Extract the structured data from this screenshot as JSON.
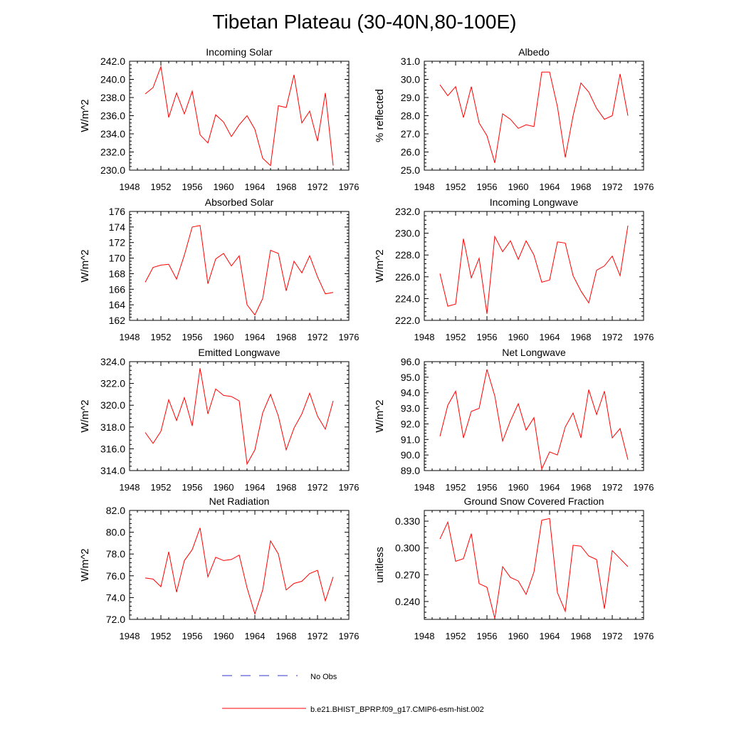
{
  "figure": {
    "title": "Tibetan Plateau (30-40N,80-100E)"
  },
  "legend": {
    "obs_label": "No Obs",
    "obs_color": "#3333cc",
    "model_label": "b.e21.BHIST_BPRP.f09_g17.CMIP6-esm-hist.002",
    "model_color": "#ff0000"
  },
  "chart_data": [
    {
      "type": "line",
      "title": "Incoming Solar",
      "ylabel": "W/m^2",
      "xlabel": "",
      "xlim": [
        1948,
        1976
      ],
      "xticks": [
        "1948",
        "1952",
        "1956",
        "1960",
        "1964",
        "1968",
        "1972",
        "1976"
      ],
      "ylim": [
        230,
        242
      ],
      "yticks": [
        "230.0",
        "232.0",
        "234.0",
        "236.0",
        "238.0",
        "240.0",
        "242.0"
      ],
      "x": [
        1950,
        1951,
        1952,
        1953,
        1954,
        1955,
        1956,
        1957,
        1958,
        1959,
        1960,
        1961,
        1962,
        1963,
        1964,
        1965,
        1966,
        1967,
        1968,
        1969,
        1970,
        1971,
        1972,
        1973,
        1974
      ],
      "series": [
        {
          "values": [
            238.4,
            239.1,
            241.4,
            235.8,
            238.5,
            236.2,
            238.7,
            233.9,
            233.0,
            236.1,
            235.3,
            233.7,
            235.0,
            236.0,
            234.5,
            231.3,
            230.5,
            237.1,
            236.9,
            240.5,
            235.2,
            236.5,
            233.2,
            238.5,
            230.5
          ]
        }
      ]
    },
    {
      "type": "line",
      "title": "Albedo",
      "ylabel": "% reflected",
      "xlabel": "",
      "xlim": [
        1948,
        1976
      ],
      "xticks": [
        "1948",
        "1952",
        "1956",
        "1960",
        "1964",
        "1968",
        "1972",
        "1976"
      ],
      "ylim": [
        25,
        31
      ],
      "yticks": [
        "25.0",
        "26.0",
        "27.0",
        "28.0",
        "29.0",
        "30.0",
        "31.0"
      ],
      "x": [
        1950,
        1951,
        1952,
        1953,
        1954,
        1955,
        1956,
        1957,
        1958,
        1959,
        1960,
        1961,
        1962,
        1963,
        1964,
        1965,
        1966,
        1967,
        1968,
        1969,
        1970,
        1971,
        1972,
        1973,
        1974
      ],
      "series": [
        {
          "values": [
            29.7,
            29.1,
            29.6,
            27.9,
            29.6,
            27.6,
            26.9,
            25.4,
            28.1,
            27.8,
            27.3,
            27.5,
            27.4,
            30.4,
            30.4,
            28.5,
            25.7,
            28.0,
            29.8,
            29.3,
            28.4,
            27.8,
            28.0,
            30.3,
            28.0
          ]
        }
      ]
    },
    {
      "type": "line",
      "title": "Absorbed Solar",
      "ylabel": "W/m^2",
      "xlabel": "",
      "xlim": [
        1948,
        1976
      ],
      "xticks": [
        "1948",
        "1952",
        "1956",
        "1960",
        "1964",
        "1968",
        "1972",
        "1976"
      ],
      "ylim": [
        162,
        176
      ],
      "yticks": [
        "162",
        "164",
        "166",
        "168",
        "170",
        "172",
        "174",
        "176"
      ],
      "x": [
        1950,
        1951,
        1952,
        1953,
        1954,
        1955,
        1956,
        1957,
        1958,
        1959,
        1960,
        1961,
        1962,
        1963,
        1964,
        1965,
        1966,
        1967,
        1968,
        1969,
        1970,
        1971,
        1972,
        1973,
        1974
      ],
      "series": [
        {
          "values": [
            166.9,
            168.8,
            169.1,
            169.2,
            167.3,
            170.4,
            174.0,
            174.2,
            166.7,
            169.9,
            170.6,
            169.0,
            170.3,
            164.0,
            162.7,
            164.8,
            171.0,
            170.6,
            165.8,
            169.6,
            168.1,
            170.3,
            167.6,
            165.4,
            165.6
          ]
        }
      ]
    },
    {
      "type": "line",
      "title": "Incoming Longwave",
      "ylabel": "W/m^2",
      "xlabel": "",
      "xlim": [
        1948,
        1976
      ],
      "xticks": [
        "1948",
        "1952",
        "1956",
        "1960",
        "1964",
        "1968",
        "1972",
        "1976"
      ],
      "ylim": [
        222,
        232
      ],
      "yticks": [
        "222.0",
        "224.0",
        "226.0",
        "228.0",
        "230.0",
        "232.0"
      ],
      "x": [
        1950,
        1951,
        1952,
        1953,
        1954,
        1955,
        1956,
        1957,
        1958,
        1959,
        1960,
        1961,
        1962,
        1963,
        1964,
        1965,
        1966,
        1967,
        1968,
        1969,
        1970,
        1971,
        1972,
        1973,
        1974
      ],
      "series": [
        {
          "values": [
            226.3,
            223.3,
            223.5,
            229.5,
            225.9,
            227.7,
            222.6,
            229.7,
            228.3,
            229.3,
            227.6,
            229.3,
            228.0,
            225.5,
            225.7,
            229.2,
            229.1,
            226.1,
            224.7,
            223.6,
            226.6,
            227.0,
            227.9,
            226.1,
            230.7
          ]
        }
      ]
    },
    {
      "type": "line",
      "title": "Emitted Longwave",
      "ylabel": "W/m^2",
      "xlabel": "",
      "xlim": [
        1948,
        1976
      ],
      "xticks": [
        "1948",
        "1952",
        "1956",
        "1960",
        "1964",
        "1968",
        "1972",
        "1976"
      ],
      "ylim": [
        314,
        324
      ],
      "yticks": [
        "314.0",
        "316.0",
        "318.0",
        "320.0",
        "322.0",
        "324.0"
      ],
      "x": [
        1950,
        1951,
        1952,
        1953,
        1954,
        1955,
        1956,
        1957,
        1958,
        1959,
        1960,
        1961,
        1962,
        1963,
        1964,
        1965,
        1966,
        1967,
        1968,
        1969,
        1970,
        1971,
        1972,
        1973,
        1974
      ],
      "series": [
        {
          "values": [
            317.5,
            316.5,
            317.6,
            320.5,
            318.6,
            320.7,
            318.1,
            323.4,
            319.2,
            321.5,
            320.9,
            320.8,
            320.4,
            314.6,
            315.9,
            319.3,
            321.0,
            319.0,
            315.9,
            317.9,
            319.2,
            321.1,
            319.0,
            317.8,
            320.4
          ]
        }
      ]
    },
    {
      "type": "line",
      "title": "Net Longwave",
      "ylabel": "W/m^2",
      "xlabel": "",
      "xlim": [
        1948,
        1976
      ],
      "xticks": [
        "1948",
        "1952",
        "1956",
        "1960",
        "1964",
        "1968",
        "1972",
        "1976"
      ],
      "ylim": [
        89,
        96
      ],
      "yticks": [
        "89.0",
        "90.0",
        "91.0",
        "92.0",
        "93.0",
        "94.0",
        "95.0",
        "96.0"
      ],
      "x": [
        1950,
        1951,
        1952,
        1953,
        1954,
        1955,
        1956,
        1957,
        1958,
        1959,
        1960,
        1961,
        1962,
        1963,
        1964,
        1965,
        1966,
        1967,
        1968,
        1969,
        1970,
        1971,
        1972,
        1973,
        1974
      ],
      "series": [
        {
          "values": [
            91.2,
            93.2,
            94.1,
            91.1,
            92.8,
            93.0,
            95.5,
            93.8,
            90.9,
            92.2,
            93.3,
            91.6,
            92.4,
            89.1,
            90.2,
            90.0,
            91.8,
            92.7,
            91.1,
            94.2,
            92.6,
            94.1,
            91.1,
            91.7,
            89.7
          ]
        }
      ]
    },
    {
      "type": "line",
      "title": "Net Radiation",
      "ylabel": "W/m^2",
      "xlabel": "",
      "xlim": [
        1948,
        1976
      ],
      "xticks": [
        "1948",
        "1952",
        "1956",
        "1960",
        "1964",
        "1968",
        "1972",
        "1976"
      ],
      "ylim": [
        72,
        82
      ],
      "yticks": [
        "72.0",
        "74.0",
        "76.0",
        "78.0",
        "80.0",
        "82.0"
      ],
      "x": [
        1950,
        1951,
        1952,
        1953,
        1954,
        1955,
        1956,
        1957,
        1958,
        1959,
        1960,
        1961,
        1962,
        1963,
        1964,
        1965,
        1966,
        1967,
        1968,
        1969,
        1970,
        1971,
        1972,
        1973,
        1974
      ],
      "series": [
        {
          "values": [
            75.8,
            75.7,
            75.0,
            78.2,
            74.5,
            77.4,
            78.4,
            80.4,
            75.9,
            77.7,
            77.4,
            77.5,
            77.9,
            74.9,
            72.5,
            74.7,
            79.2,
            78.0,
            74.7,
            75.3,
            75.5,
            76.2,
            76.5,
            73.7,
            75.9
          ]
        }
      ]
    },
    {
      "type": "line",
      "title": "Ground Snow Covered Fraction",
      "ylabel": "unitless",
      "xlabel": "",
      "xlim": [
        1948,
        1976
      ],
      "xticks": [
        "1948",
        "1952",
        "1956",
        "1960",
        "1964",
        "1968",
        "1972",
        "1976"
      ],
      "ylim": [
        0.22,
        0.342
      ],
      "yticks": [
        "0.240",
        "0.270",
        "0.300",
        "0.330"
      ],
      "ytick_values": [
        0.24,
        0.27,
        0.3,
        0.33
      ],
      "x": [
        1950,
        1951,
        1952,
        1953,
        1954,
        1955,
        1956,
        1957,
        1958,
        1959,
        1960,
        1961,
        1962,
        1963,
        1964,
        1965,
        1966,
        1967,
        1968,
        1969,
        1970,
        1971,
        1972,
        1973,
        1974
      ],
      "series": [
        {
          "values": [
            0.31,
            0.329,
            0.285,
            0.288,
            0.316,
            0.26,
            0.256,
            0.221,
            0.279,
            0.267,
            0.263,
            0.248,
            0.273,
            0.331,
            0.333,
            0.25,
            0.229,
            0.303,
            0.302,
            0.291,
            0.287,
            0.232,
            0.297,
            0.288,
            0.279
          ]
        }
      ]
    }
  ]
}
